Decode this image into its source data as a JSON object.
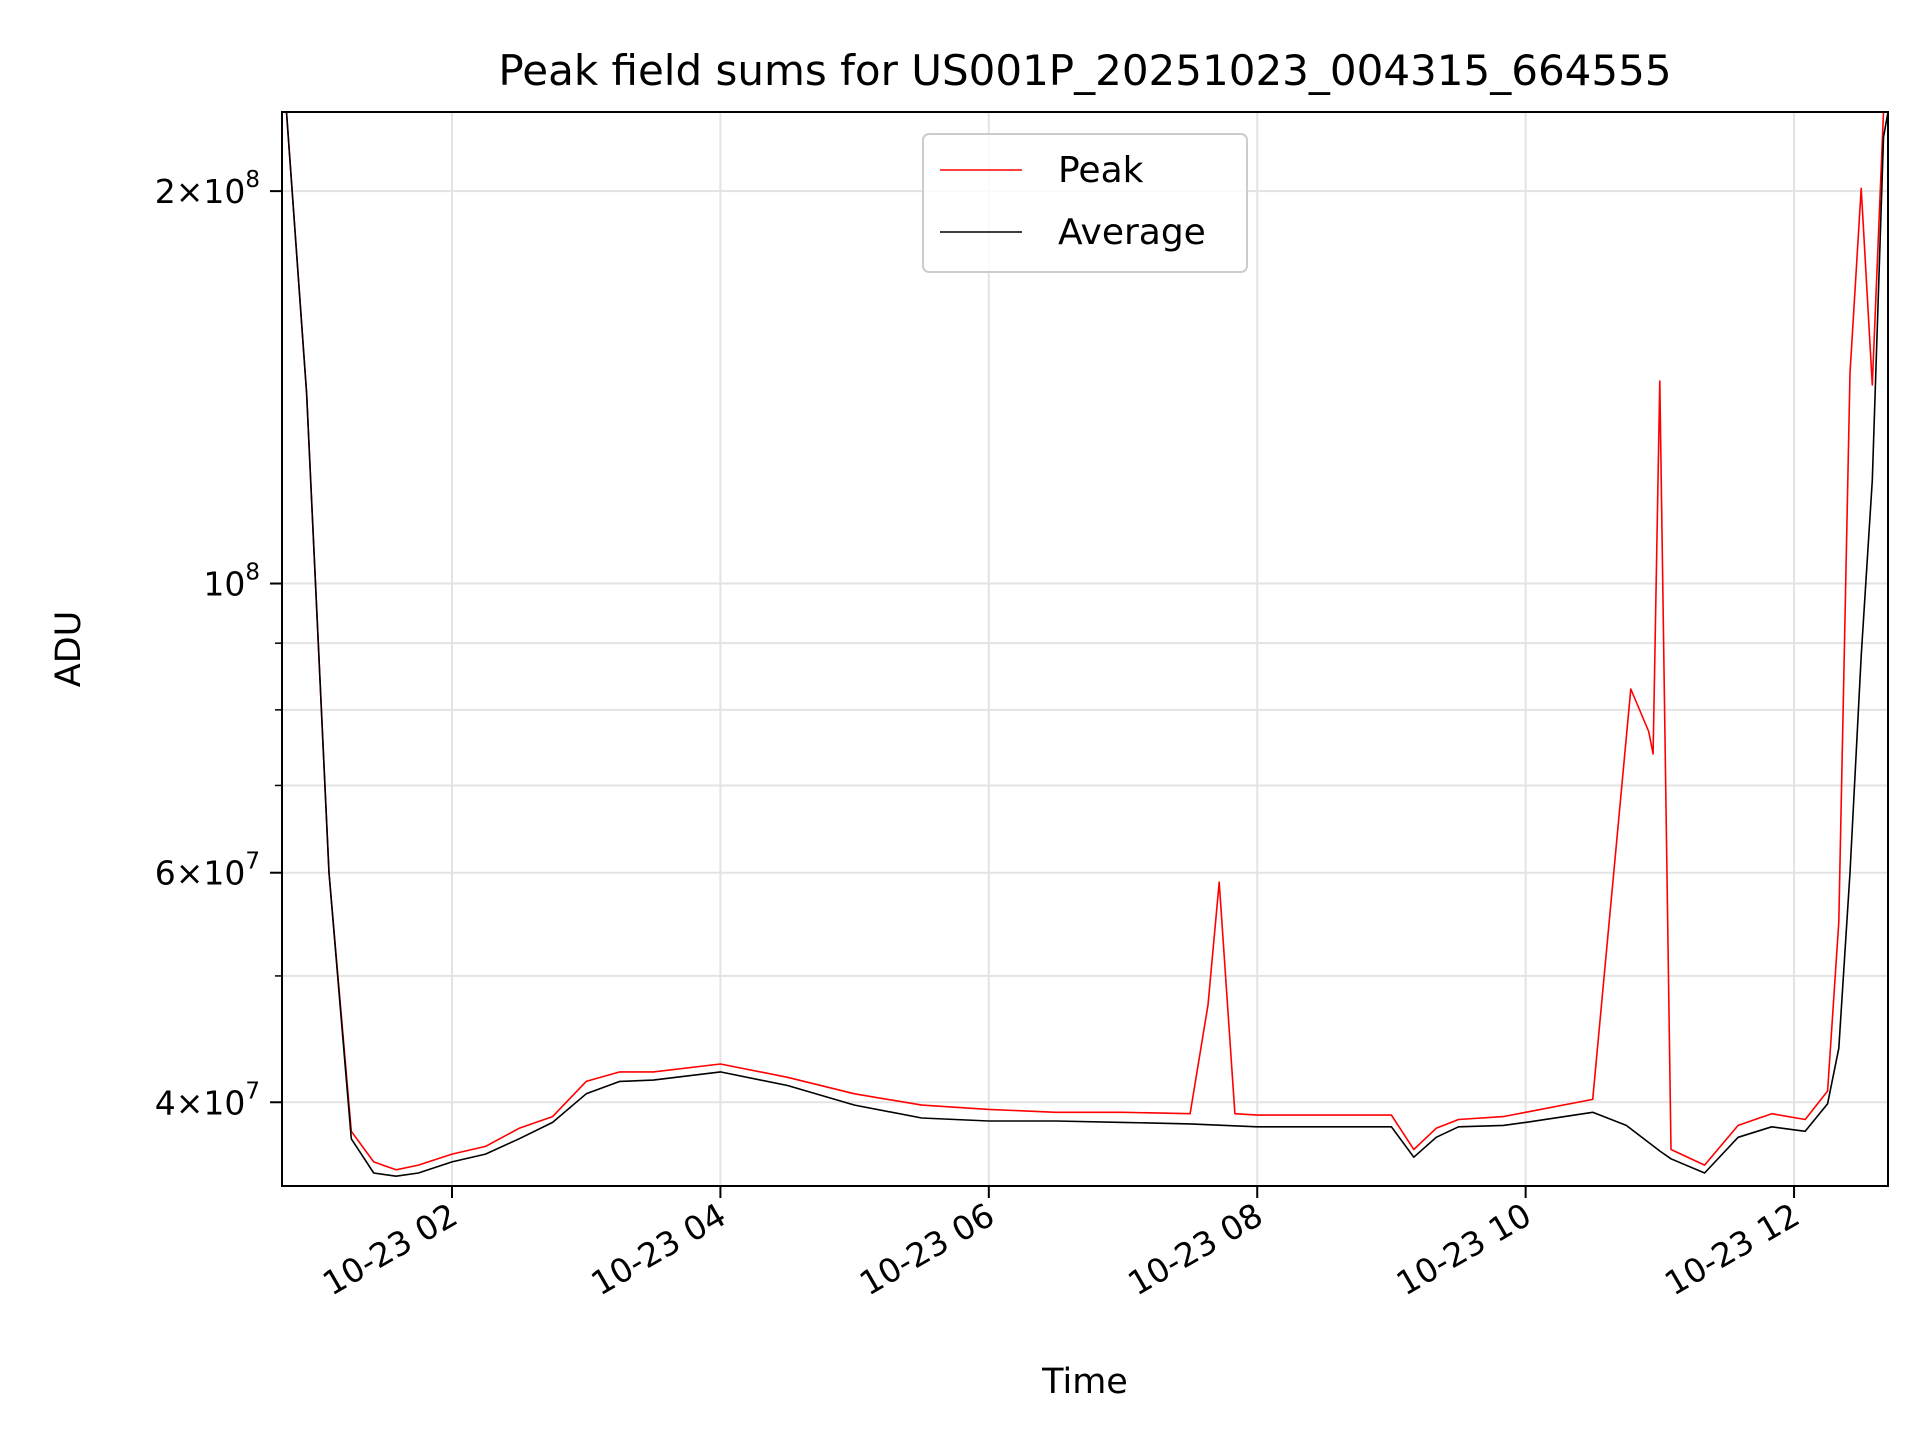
{
  "chart_data": {
    "type": "line",
    "title": "Peak field sums for US001P_20251023_004315_664555",
    "xlabel": "Time",
    "ylabel": "ADU",
    "yscale": "log",
    "xlim": [
      "2025-10-23 00:44",
      "2025-10-23 12:42"
    ],
    "ylim": [
      34500000,
      230000000
    ],
    "grid": true,
    "legend_position": "top-center",
    "x_ticks": [
      {
        "value": "2025-10-23 02:00",
        "label": "10-23 02"
      },
      {
        "value": "2025-10-23 04:00",
        "label": "10-23 04"
      },
      {
        "value": "2025-10-23 06:00",
        "label": "10-23 06"
      },
      {
        "value": "2025-10-23 08:00",
        "label": "10-23 08"
      },
      {
        "value": "2025-10-23 10:00",
        "label": "10-23 10"
      },
      {
        "value": "2025-10-23 12:00",
        "label": "10-23 12"
      }
    ],
    "y_ticks": [
      {
        "value": 40000000,
        "mantissa": "4",
        "exponent": "7"
      },
      {
        "value": 60000000,
        "mantissa": "6",
        "exponent": "7"
      },
      {
        "value": 100000000,
        "mantissa": "",
        "exponent": "8"
      },
      {
        "value": 200000000,
        "mantissa": "2",
        "exponent": "8"
      }
    ],
    "y_minor_ticks": [
      50000000,
      70000000,
      80000000,
      90000000
    ],
    "series": [
      {
        "name": "Peak",
        "color": "#ff0000",
        "x": [
          "2025-10-23 00:46",
          "2025-10-23 00:55",
          "2025-10-23 01:05",
          "2025-10-23 01:15",
          "2025-10-23 01:25",
          "2025-10-23 01:35",
          "2025-10-23 01:45",
          "2025-10-23 02:00",
          "2025-10-23 02:15",
          "2025-10-23 02:30",
          "2025-10-23 02:45",
          "2025-10-23 03:00",
          "2025-10-23 03:15",
          "2025-10-23 03:30",
          "2025-10-23 04:00",
          "2025-10-23 04:30",
          "2025-10-23 05:00",
          "2025-10-23 05:30",
          "2025-10-23 06:00",
          "2025-10-23 06:30",
          "2025-10-23 07:00",
          "2025-10-23 07:30",
          "2025-10-23 07:38",
          "2025-10-23 07:43",
          "2025-10-23 07:50",
          "2025-10-23 08:00",
          "2025-10-23 08:30",
          "2025-10-23 09:00",
          "2025-10-23 09:10",
          "2025-10-23 09:20",
          "2025-10-23 09:30",
          "2025-10-23 09:50",
          "2025-10-23 10:00",
          "2025-10-23 10:30",
          "2025-10-23 10:47",
          "2025-10-23 10:55",
          "2025-10-23 10:57",
          "2025-10-23 11:00",
          "2025-10-23 11:05",
          "2025-10-23 11:20",
          "2025-10-23 11:35",
          "2025-10-23 11:50",
          "2025-10-23 12:05",
          "2025-10-23 12:15",
          "2025-10-23 12:20",
          "2025-10-23 12:25",
          "2025-10-23 12:30",
          "2025-10-23 12:35",
          "2025-10-23 12:40",
          "2025-10-23 12:42"
        ],
        "values": [
          230000000,
          140000000,
          60000000,
          38000000,
          36000000,
          35500000,
          35800000,
          36500000,
          37000000,
          38200000,
          39000000,
          41500000,
          42200000,
          42200000,
          42800000,
          41800000,
          40600000,
          39800000,
          39500000,
          39300000,
          39300000,
          39200000,
          47500000,
          59000000,
          39200000,
          39100000,
          39100000,
          39100000,
          36800000,
          38200000,
          38800000,
          39000000,
          39300000,
          40200000,
          83000000,
          77000000,
          74000000,
          143000000,
          36800000,
          35800000,
          38400000,
          39200000,
          38800000,
          40800000,
          55000000,
          145000000,
          201000000,
          142000000,
          230000000,
          230000000
        ]
      },
      {
        "name": "Average",
        "color": "#000000",
        "x": [
          "2025-10-23 00:46",
          "2025-10-23 00:55",
          "2025-10-23 01:05",
          "2025-10-23 01:15",
          "2025-10-23 01:25",
          "2025-10-23 01:35",
          "2025-10-23 01:45",
          "2025-10-23 02:00",
          "2025-10-23 02:15",
          "2025-10-23 02:30",
          "2025-10-23 02:45",
          "2025-10-23 03:00",
          "2025-10-23 03:15",
          "2025-10-23 03:30",
          "2025-10-23 04:00",
          "2025-10-23 04:30",
          "2025-10-23 05:00",
          "2025-10-23 05:30",
          "2025-10-23 06:00",
          "2025-10-23 06:30",
          "2025-10-23 07:00",
          "2025-10-23 07:30",
          "2025-10-23 08:00",
          "2025-10-23 08:30",
          "2025-10-23 09:00",
          "2025-10-23 09:10",
          "2025-10-23 09:20",
          "2025-10-23 09:30",
          "2025-10-23 09:50",
          "2025-10-23 10:00",
          "2025-10-23 10:30",
          "2025-10-23 10:45",
          "2025-10-23 11:00",
          "2025-10-23 11:05",
          "2025-10-23 11:20",
          "2025-10-23 11:35",
          "2025-10-23 11:50",
          "2025-10-23 12:05",
          "2025-10-23 12:15",
          "2025-10-23 12:20",
          "2025-10-23 12:25",
          "2025-10-23 12:30",
          "2025-10-23 12:35",
          "2025-10-23 12:40",
          "2025-10-23 12:42"
        ],
        "values": [
          230000000,
          140000000,
          60000000,
          37500000,
          35300000,
          35100000,
          35300000,
          36000000,
          36500000,
          37500000,
          38600000,
          40600000,
          41500000,
          41600000,
          42200000,
          41200000,
          39800000,
          38900000,
          38700000,
          38700000,
          38600000,
          38500000,
          38300000,
          38300000,
          38300000,
          36300000,
          37600000,
          38300000,
          38400000,
          38600000,
          39300000,
          38400000,
          36700000,
          36200000,
          35300000,
          37600000,
          38300000,
          38000000,
          39900000,
          44000000,
          60000000,
          88000000,
          120000000,
          220000000,
          230000000
        ]
      }
    ]
  }
}
